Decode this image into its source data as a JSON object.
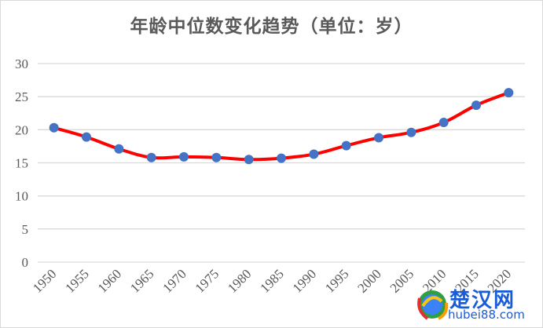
{
  "chart_data": {
    "type": "line",
    "title": "年龄中位数变化趋势（单位：岁）",
    "xlabel": "",
    "ylabel": "",
    "categories": [
      "1950",
      "1955",
      "1960",
      "1965",
      "1970",
      "1975",
      "1980",
      "1985",
      "1990",
      "1995",
      "2000",
      "2005",
      "2010",
      "2015",
      "2020"
    ],
    "series": [
      {
        "name": "年龄中位数",
        "values": [
          20.3,
          18.9,
          17.1,
          15.8,
          15.9,
          15.8,
          15.5,
          15.7,
          16.3,
          17.6,
          18.8,
          19.6,
          21.1,
          23.7,
          25.6
        ],
        "line_color": "#ff0000",
        "marker_color": "#4472c4"
      }
    ],
    "yticks": [
      0,
      5,
      10,
      15,
      20,
      25,
      30
    ],
    "ylim": [
      0,
      30
    ],
    "grid": true,
    "legend": "none"
  },
  "watermark": {
    "name_cn": "楚汉网",
    "url": "hubei88.com"
  }
}
